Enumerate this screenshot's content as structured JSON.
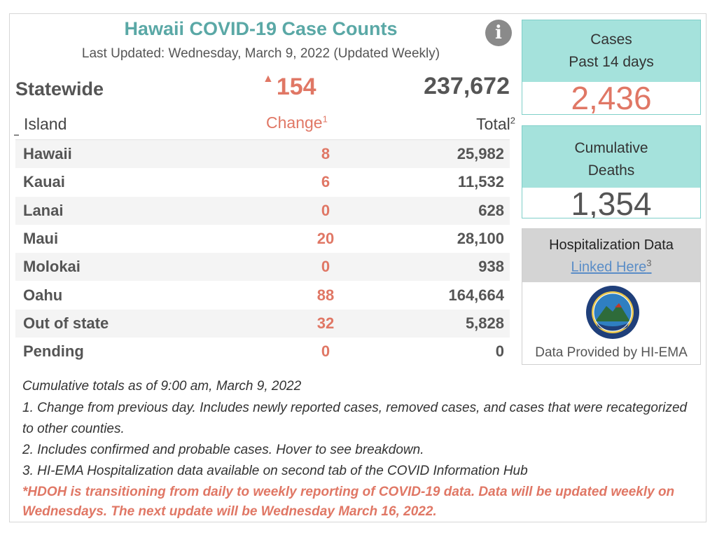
{
  "header": {
    "title": "Hawaii COVID-19 Case Counts",
    "subtitle": "Last Updated: Wednesday, March 9, 2022 (Updated Weekly)",
    "info_icon": "i"
  },
  "statewide": {
    "label": "Statewide",
    "change_arrow": "▲",
    "change": "154",
    "total": "237,672"
  },
  "table": {
    "headers": {
      "island": "Island",
      "change": "Change",
      "change_sup": "1",
      "total": "Total",
      "total_sup": "2"
    },
    "rows": [
      {
        "island": "Hawaii",
        "change": "8",
        "total": "25,982"
      },
      {
        "island": "Kauai",
        "change": "6",
        "total": "11,532"
      },
      {
        "island": "Lanai",
        "change": "0",
        "total": "628"
      },
      {
        "island": "Maui",
        "change": "20",
        "total": "28,100"
      },
      {
        "island": "Molokai",
        "change": "0",
        "total": "938"
      },
      {
        "island": "Oahu",
        "change": "88",
        "total": "164,664"
      },
      {
        "island": "Out of state",
        "change": "32",
        "total": "5,828"
      },
      {
        "island": "Pending",
        "change": "0",
        "total": "0"
      }
    ]
  },
  "cards": {
    "cases_line1": "Cases",
    "cases_line2": "Past 14 days",
    "cases_value": "2,436",
    "deaths_line1": "Cumulative",
    "deaths_line2": "Deaths",
    "deaths_value": "1,354"
  },
  "hospitalization": {
    "title": "Hospitalization Data",
    "link": "Linked Here",
    "link_sup": "3",
    "credit": "Data Provided by HI-EMA",
    "seal_icon": "hi-ema-seal"
  },
  "notes": {
    "line1": "Cumulative totals as of 9:00 am, March 9, 2022",
    "line2": "1. Change from previous day. Includes newly reported cases, removed cases, and cases that were recategorized to other counties.",
    "line3": "2. Includes confirmed and probable cases. Hover to see breakdown.",
    "line4": "3. HI-EMA Hospitalization data available on second tab of the COVID Information Hub",
    "alert": "*HDOH is transitioning from daily to weekly reporting of COVID-19 data. Data will be updated weekly on Wednesdays. The next update will be Wednesday March 16, 2022."
  },
  "colors": {
    "title": "#5aa8a6",
    "accent": "#e07765",
    "card_head": "#a5e2dc",
    "link": "#5a8dc7"
  }
}
